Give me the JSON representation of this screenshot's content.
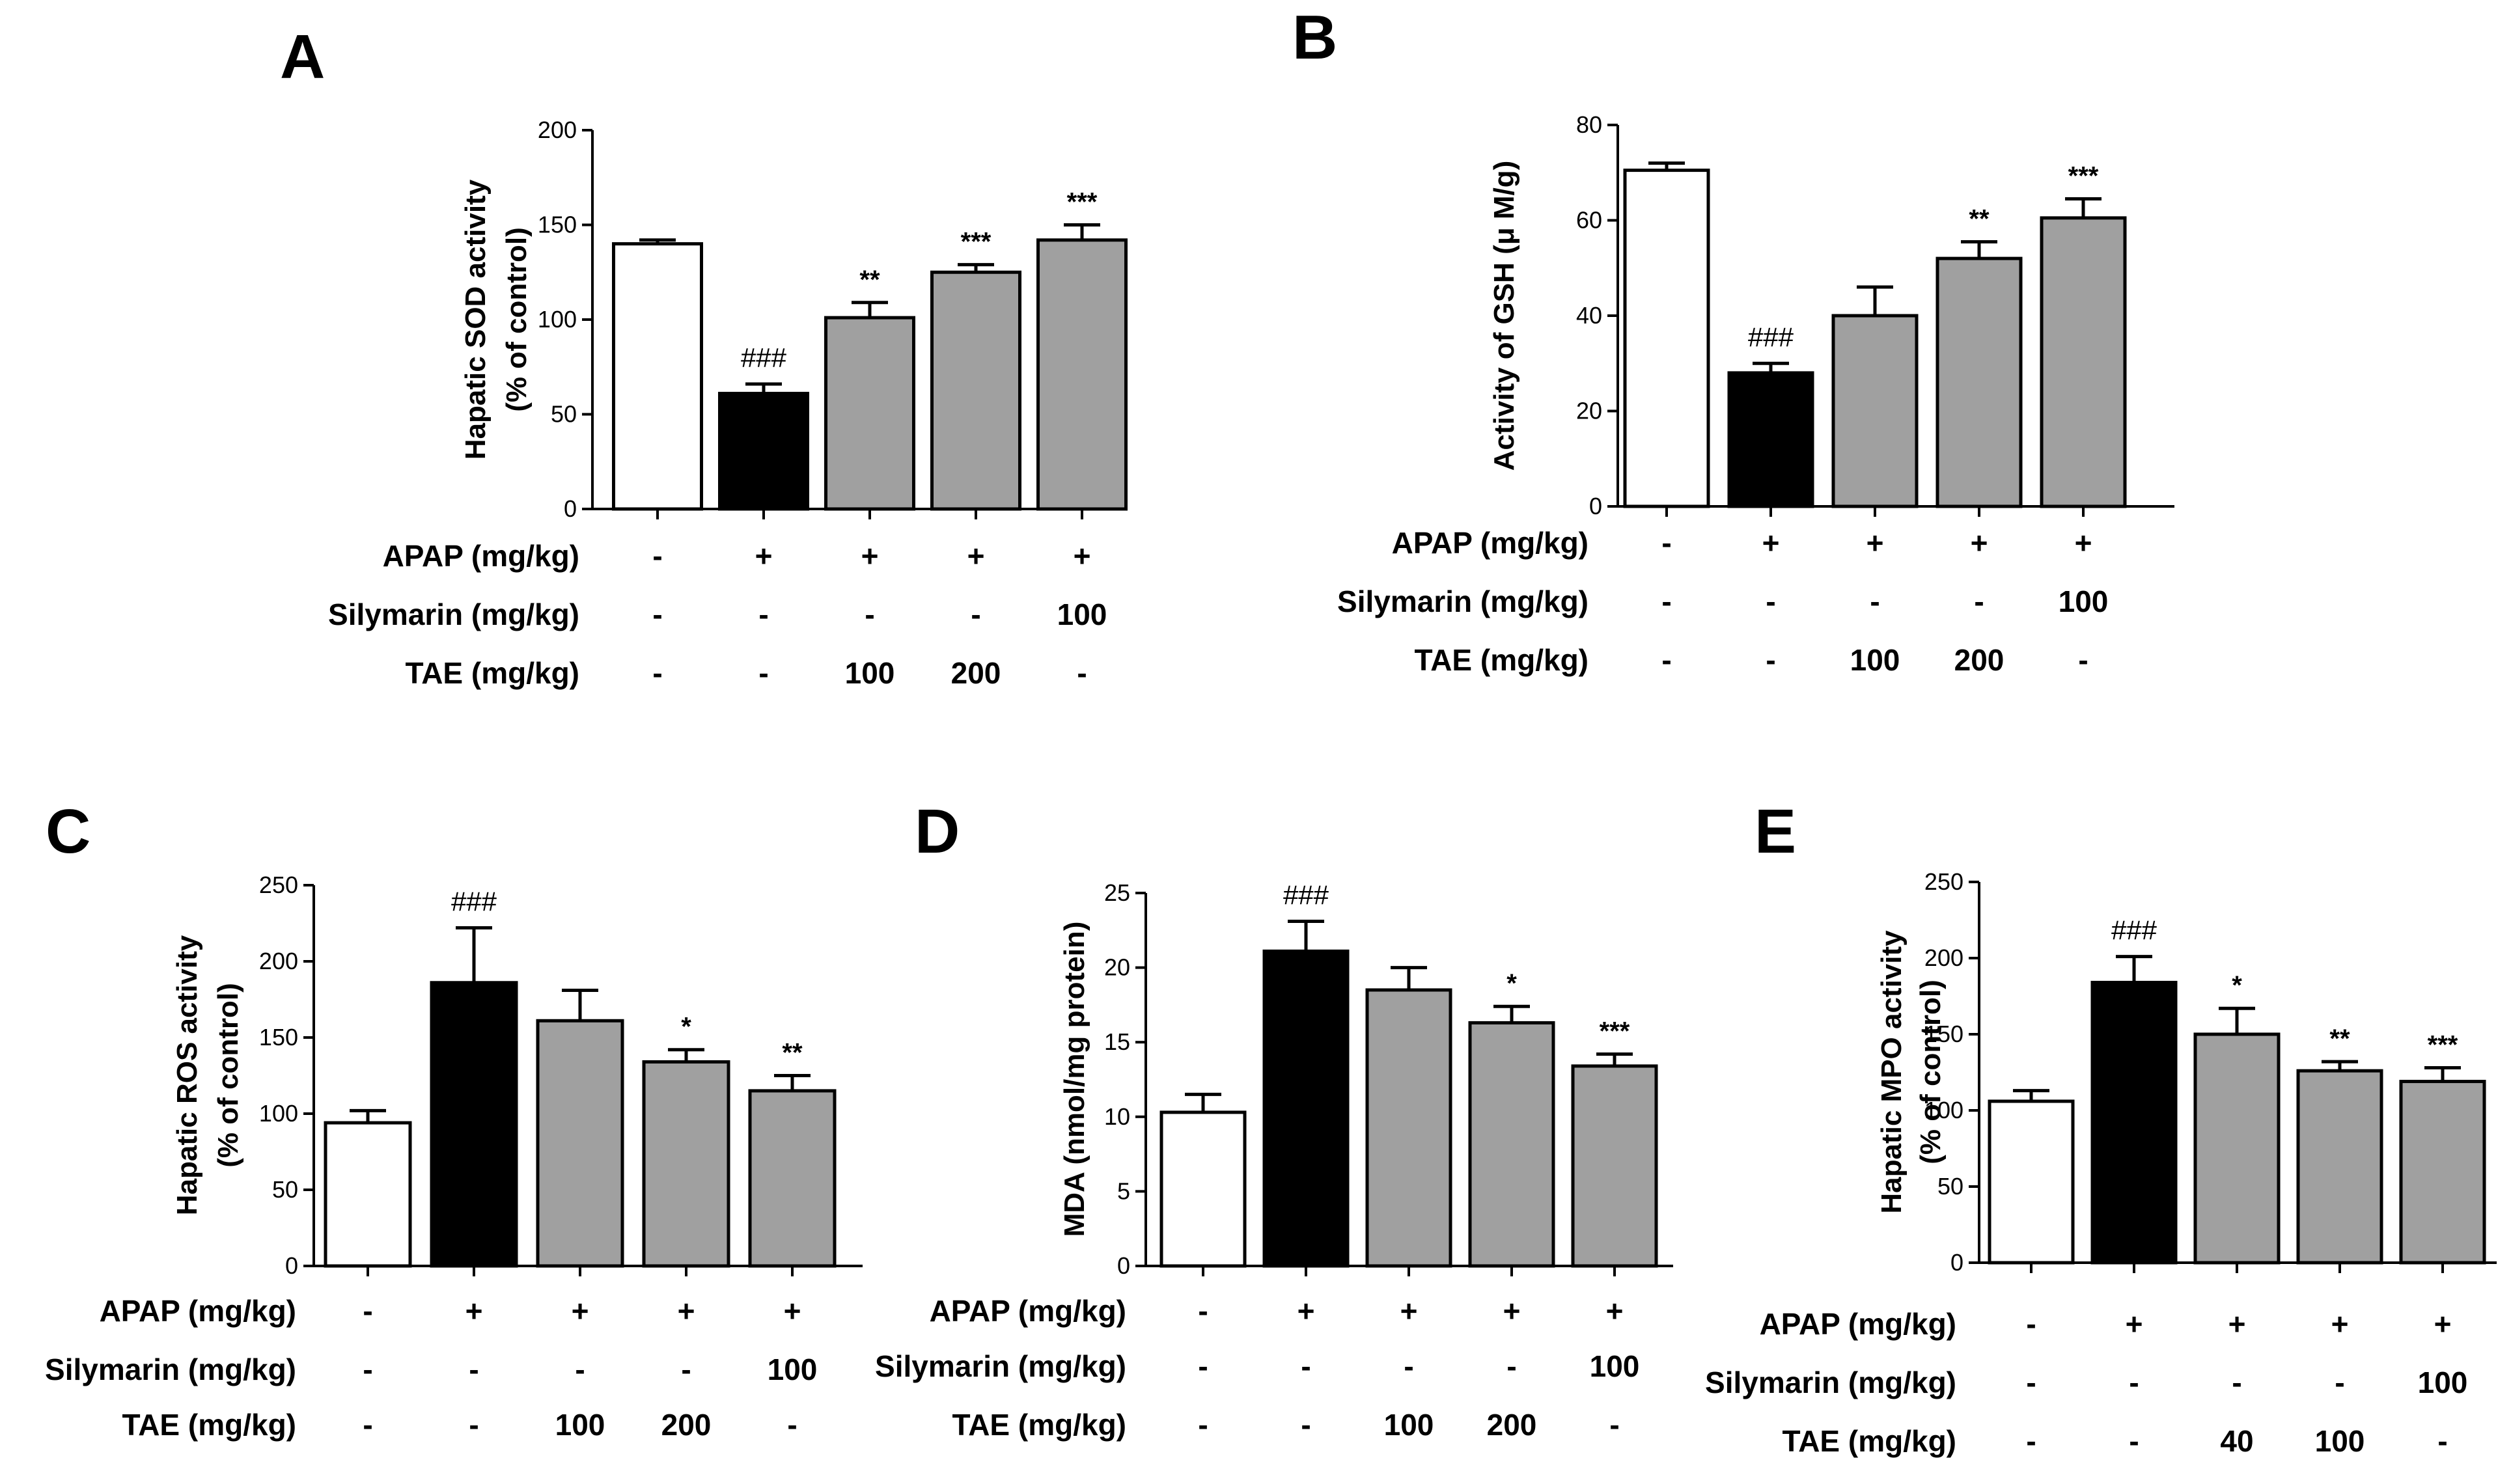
{
  "chart_data": [
    {
      "panel": "A",
      "type": "bar",
      "ylabel_lines": [
        "Hapatic SOD activity",
        "(% of control)"
      ],
      "ylim": [
        0,
        200
      ],
      "yticks": [
        0,
        50,
        100,
        150,
        200
      ],
      "values": [
        140,
        61,
        101,
        125,
        142
      ],
      "errors": [
        2,
        5,
        8,
        4,
        8
      ],
      "fills": [
        "#ffffff",
        "#000000",
        "#a0a0a0",
        "#a0a0a0",
        "#a0a0a0"
      ],
      "significance": [
        "",
        "###",
        "**",
        "***",
        "***"
      ],
      "conditions": [
        {
          "label": "APAP (mg/kg)",
          "values": [
            "-",
            "+",
            "+",
            "+",
            "+"
          ]
        },
        {
          "label": "Silymarin (mg/kg)",
          "values": [
            "-",
            "-",
            "-",
            "-",
            "100"
          ]
        },
        {
          "label": "TAE (mg/kg)",
          "values": [
            "-",
            "-",
            "100",
            "200",
            "-"
          ]
        }
      ]
    },
    {
      "panel": "B",
      "type": "bar",
      "ylabel_lines": [
        "Activity of GSH (μ M/g)"
      ],
      "ylim": [
        0,
        80
      ],
      "yticks": [
        0,
        20,
        40,
        60,
        80
      ],
      "values": [
        70.5,
        28,
        40,
        52,
        60.5
      ],
      "errors": [
        1.5,
        2,
        6,
        3.5,
        4
      ],
      "fills": [
        "#ffffff",
        "#000000",
        "#a0a0a0",
        "#a0a0a0",
        "#a0a0a0"
      ],
      "significance": [
        "",
        "###",
        "",
        "**",
        "***"
      ],
      "conditions": [
        {
          "label": "APAP (mg/kg)",
          "values": [
            "-",
            "+",
            "+",
            "+",
            "+"
          ]
        },
        {
          "label": "Silymarin (mg/kg)",
          "values": [
            "-",
            "-",
            "-",
            "-",
            "100"
          ]
        },
        {
          "label": "TAE (mg/kg)",
          "values": [
            "-",
            "-",
            "100",
            "200",
            "-"
          ]
        }
      ]
    },
    {
      "panel": "C",
      "type": "bar",
      "ylabel_lines": [
        "Hapatic ROS activity",
        "(% of control)"
      ],
      "ylim": [
        0,
        250
      ],
      "yticks": [
        0,
        50,
        100,
        150,
        200,
        250
      ],
      "values": [
        94,
        186,
        161,
        134,
        115
      ],
      "errors": [
        8,
        36,
        20,
        8,
        10
      ],
      "fills": [
        "#ffffff",
        "#000000",
        "#a0a0a0",
        "#a0a0a0",
        "#a0a0a0"
      ],
      "significance": [
        "",
        "###",
        "",
        "*",
        "**"
      ],
      "conditions": [
        {
          "label": "APAP (mg/kg)",
          "values": [
            "-",
            "+",
            "+",
            "+",
            "+"
          ]
        },
        {
          "label": "Silymarin (mg/kg)",
          "values": [
            "-",
            "-",
            "-",
            "-",
            "100"
          ]
        },
        {
          "label": "TAE (mg/kg)",
          "values": [
            "-",
            "-",
            "100",
            "200",
            "-"
          ]
        }
      ]
    },
    {
      "panel": "D",
      "type": "bar",
      "ylabel_lines": [
        "MDA (nmol/mg protein)"
      ],
      "ylim": [
        0,
        25
      ],
      "yticks": [
        0,
        5,
        10,
        15,
        20,
        25
      ],
      "values": [
        10.3,
        21.1,
        18.5,
        16.3,
        13.4
      ],
      "errors": [
        1.2,
        2.0,
        1.5,
        1.1,
        0.8
      ],
      "fills": [
        "#ffffff",
        "#000000",
        "#a0a0a0",
        "#a0a0a0",
        "#a0a0a0"
      ],
      "significance": [
        "",
        "###",
        "",
        "*",
        "***"
      ],
      "conditions": [
        {
          "label": "APAP (mg/kg)",
          "values": [
            "-",
            "+",
            "+",
            "+",
            "+"
          ]
        },
        {
          "label": "Silymarin (mg/kg)",
          "values": [
            "-",
            "-",
            "-",
            "-",
            "100"
          ]
        },
        {
          "label": "TAE (mg/kg)",
          "values": [
            "-",
            "-",
            "100",
            "200",
            "-"
          ]
        }
      ]
    },
    {
      "panel": "E",
      "type": "bar",
      "ylabel_lines": [
        "Hapatic MPO activity",
        "(% of control)"
      ],
      "ylim": [
        0,
        250
      ],
      "yticks": [
        0,
        50,
        100,
        150,
        200,
        250
      ],
      "values": [
        106,
        184,
        150,
        126,
        119
      ],
      "errors": [
        7,
        17,
        17,
        6,
        9
      ],
      "fills": [
        "#ffffff",
        "#000000",
        "#a0a0a0",
        "#a0a0a0",
        "#a0a0a0"
      ],
      "significance": [
        "",
        "###",
        "*",
        "**",
        "***"
      ],
      "conditions": [
        {
          "label": "APAP (mg/kg)",
          "values": [
            "-",
            "+",
            "+",
            "+",
            "+"
          ]
        },
        {
          "label": "Silymarin (mg/kg)",
          "values": [
            "-",
            "-",
            "-",
            "-",
            "100"
          ]
        },
        {
          "label": "TAE (mg/kg)",
          "values": [
            "-",
            "-",
            "40",
            "100",
            "-"
          ]
        }
      ]
    }
  ]
}
